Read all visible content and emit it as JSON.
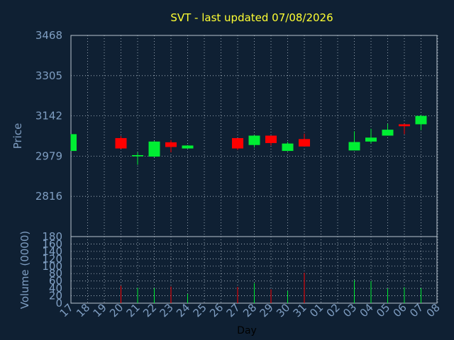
{
  "chart_data": [
    {
      "type": "candlestick",
      "title": "SVT - last updated 07/08/2026",
      "ylabel": "Price",
      "ylim": [
        2653,
        3468
      ],
      "yticks": [
        2816,
        2979,
        3142,
        3305,
        3468
      ],
      "grid": true,
      "colors": {
        "background": "#0f2033",
        "up": "#00ee33",
        "down": "#ff0000",
        "grid": "#b8c4cf",
        "title": "#ffff33",
        "axis_text": "#7f9ec2"
      },
      "candles": [
        {
          "day": "17",
          "open": 3000,
          "high": 3068,
          "low": 3000,
          "close": 3068
        },
        {
          "day": "20",
          "open": 3052,
          "high": 3060,
          "low": 3008,
          "close": 3010
        },
        {
          "day": "21",
          "open": 2978,
          "high": 2994,
          "low": 2944,
          "close": 2983
        },
        {
          "day": "22",
          "open": 2977,
          "high": 3040,
          "low": 2975,
          "close": 3038
        },
        {
          "day": "23",
          "open": 3035,
          "high": 3044,
          "low": 2994,
          "close": 3016
        },
        {
          "day": "24",
          "open": 3010,
          "high": 3024,
          "low": 3010,
          "close": 3022
        },
        {
          "day": "27",
          "open": 3052,
          "high": 3052,
          "low": 3004,
          "close": 3010
        },
        {
          "day": "28",
          "open": 3024,
          "high": 3064,
          "low": 3014,
          "close": 3062
        },
        {
          "day": "29",
          "open": 3062,
          "high": 3062,
          "low": 3022,
          "close": 3032
        },
        {
          "day": "30",
          "open": 3000,
          "high": 3036,
          "low": 3000,
          "close": 3030
        },
        {
          "day": "31",
          "open": 3048,
          "high": 3070,
          "low": 3018,
          "close": 3018
        },
        {
          "day": "03",
          "open": 3002,
          "high": 3080,
          "low": 3002,
          "close": 3036
        },
        {
          "day": "04",
          "open": 3038,
          "high": 3090,
          "low": 3030,
          "close": 3054
        },
        {
          "day": "05",
          "open": 3062,
          "high": 3110,
          "low": 3062,
          "close": 3086
        },
        {
          "day": "06",
          "open": 3108,
          "high": 3110,
          "low": 3068,
          "close": 3100
        },
        {
          "day": "07",
          "open": 3108,
          "high": 3146,
          "low": 3084,
          "close": 3142
        }
      ]
    },
    {
      "type": "bar",
      "ylabel": "Volume (0000)",
      "xlabel": "Day",
      "ylim": [
        0,
        180
      ],
      "yticks": [
        0,
        20,
        40,
        60,
        80,
        100,
        120,
        140,
        160,
        180
      ],
      "grid": true,
      "categories": [
        "17",
        "18",
        "19",
        "20",
        "21",
        "22",
        "23",
        "24",
        "25",
        "26",
        "27",
        "28",
        "29",
        "30",
        "31",
        "01",
        "02",
        "03",
        "04",
        "05",
        "06",
        "07",
        "08"
      ],
      "volumes": [
        {
          "day": "20",
          "value": 47,
          "direction": "down"
        },
        {
          "day": "21",
          "value": 42,
          "direction": "up"
        },
        {
          "day": "22",
          "value": 41,
          "direction": "up"
        },
        {
          "day": "23",
          "value": 45,
          "direction": "down"
        },
        {
          "day": "24",
          "value": 25,
          "direction": "up"
        },
        {
          "day": "27",
          "value": 44,
          "direction": "down"
        },
        {
          "day": "28",
          "value": 54,
          "direction": "up"
        },
        {
          "day": "29",
          "value": 37,
          "direction": "down"
        },
        {
          "day": "30",
          "value": 33,
          "direction": "up"
        },
        {
          "day": "31",
          "value": 82,
          "direction": "down"
        },
        {
          "day": "03",
          "value": 62,
          "direction": "up"
        },
        {
          "day": "04",
          "value": 60,
          "direction": "up"
        },
        {
          "day": "05",
          "value": 40,
          "direction": "up"
        },
        {
          "day": "06",
          "value": 43,
          "direction": "up"
        },
        {
          "day": "07",
          "value": 41,
          "direction": "up"
        }
      ]
    }
  ]
}
